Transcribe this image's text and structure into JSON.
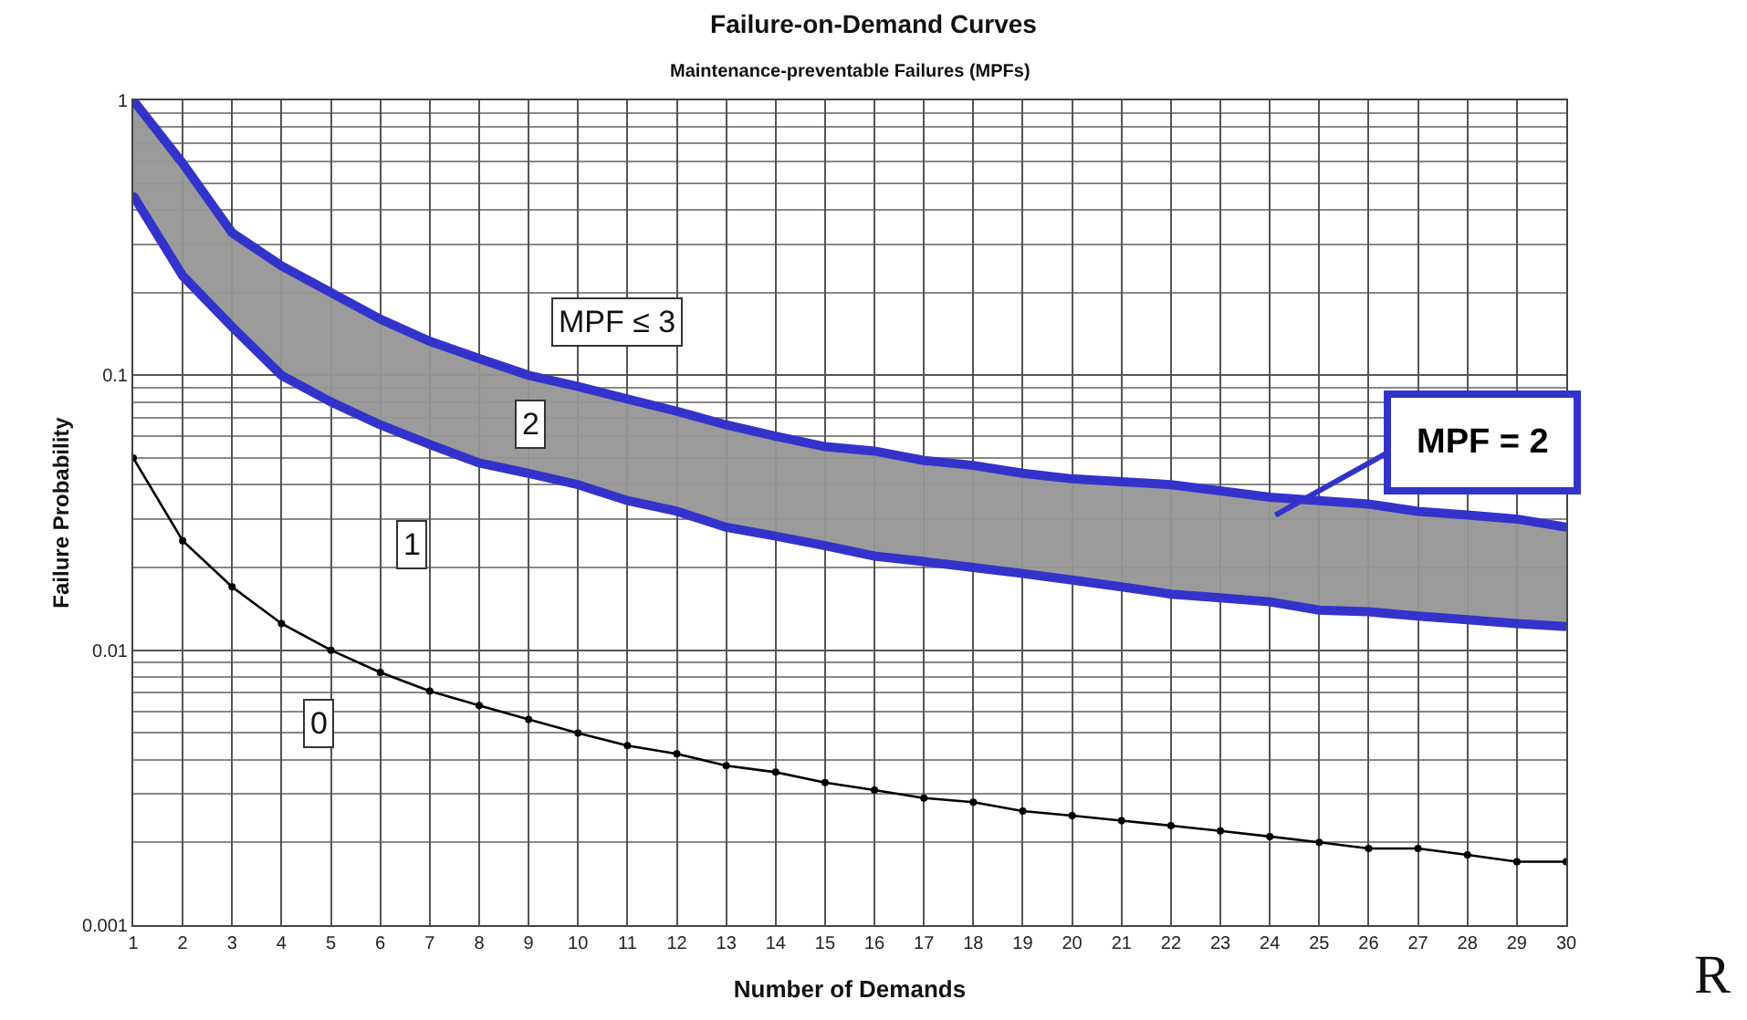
{
  "chart_data": {
    "type": "line",
    "title": "Failure-on-Demand Curves",
    "subtitle": "Maintenance-preventable Failures (MPFs)",
    "xlabel": "Number of Demands",
    "ylabel": "Failure Probability",
    "x": [
      1,
      2,
      3,
      4,
      5,
      6,
      7,
      8,
      9,
      10,
      11,
      12,
      13,
      14,
      15,
      16,
      17,
      18,
      19,
      20,
      21,
      22,
      23,
      24,
      25,
      26,
      27,
      28,
      29,
      30
    ],
    "series": [
      {
        "color": "#000000",
        "values": [
          0.05,
          0.025,
          0.017,
          0.0125,
          0.01,
          0.0083,
          0.0071,
          0.0063,
          0.0056,
          0.005,
          0.0045,
          0.0042,
          0.0038,
          0.0036,
          0.0033,
          0.0031,
          0.0029,
          0.0028,
          0.0026,
          0.0025,
          0.0024,
          0.0023,
          0.0022,
          0.0021,
          0.002,
          0.0019,
          0.0019,
          0.0018,
          0.0017,
          0.0017
        ]
      },
      {
        "color": "#3333cc",
        "values": [
          0.45,
          0.23,
          0.15,
          0.1,
          0.08,
          0.066,
          0.056,
          0.048,
          0.044,
          0.04,
          0.035,
          0.032,
          0.028,
          0.026,
          0.024,
          0.022,
          0.021,
          0.02,
          0.019,
          0.018,
          0.017,
          0.016,
          0.0155,
          0.015,
          0.014,
          0.0138,
          0.0133,
          0.0129,
          0.0125,
          0.0122
        ]
      },
      {
        "color": "#3333cc",
        "values": [
          1,
          0.59,
          0.33,
          0.25,
          0.2,
          0.16,
          0.133,
          0.115,
          0.1,
          0.091,
          0.082,
          0.074,
          0.066,
          0.06,
          0.055,
          0.053,
          0.049,
          0.047,
          0.044,
          0.042,
          0.041,
          0.04,
          0.038,
          0.036,
          0.035,
          0.034,
          0.032,
          0.031,
          0.03,
          0.028
        ],
        "lower": [
          0.45,
          0.23,
          0.15,
          0.1,
          0.08,
          0.066,
          0.056,
          0.048,
          0.044,
          0.04,
          0.035,
          0.032,
          0.028,
          0.026,
          0.024,
          0.022,
          0.021,
          0.02,
          0.019,
          0.018,
          0.017,
          0.016,
          0.0155,
          0.015,
          0.014,
          0.0138,
          0.0133,
          0.0129,
          0.0125,
          0.0122
        ],
        "upper": [
          1,
          0.59,
          0.33,
          0.25,
          0.2,
          0.16,
          0.133,
          0.115,
          0.1,
          0.091,
          0.082,
          0.074,
          0.066,
          0.06,
          0.055,
          0.053,
          0.049,
          0.047,
          0.044,
          0.042,
          0.041,
          0.04,
          0.038,
          0.036,
          0.035,
          0.034,
          0.032,
          0.031,
          0.03,
          0.028
        ]
      }
    ],
    "log": "y",
    "xlim": [
      1,
      30
    ],
    "ylim": [
      0.001,
      1
    ],
    "xticks": [
      1,
      2,
      3,
      4,
      5,
      6,
      7,
      8,
      9,
      10,
      11,
      12,
      13,
      14,
      15,
      16,
      17,
      18,
      19,
      20,
      21,
      22,
      23,
      24,
      25,
      26,
      27,
      28,
      29,
      30
    ],
    "yticks": [
      0.001,
      0.01,
      0.1,
      1
    ],
    "grid": true,
    "marker": "circle",
    "line_style": "solid",
    "annotations": [
      "MPF ≤ 3",
      "2",
      "1",
      "0",
      "MPF = 2",
      "R"
    ]
  }
}
